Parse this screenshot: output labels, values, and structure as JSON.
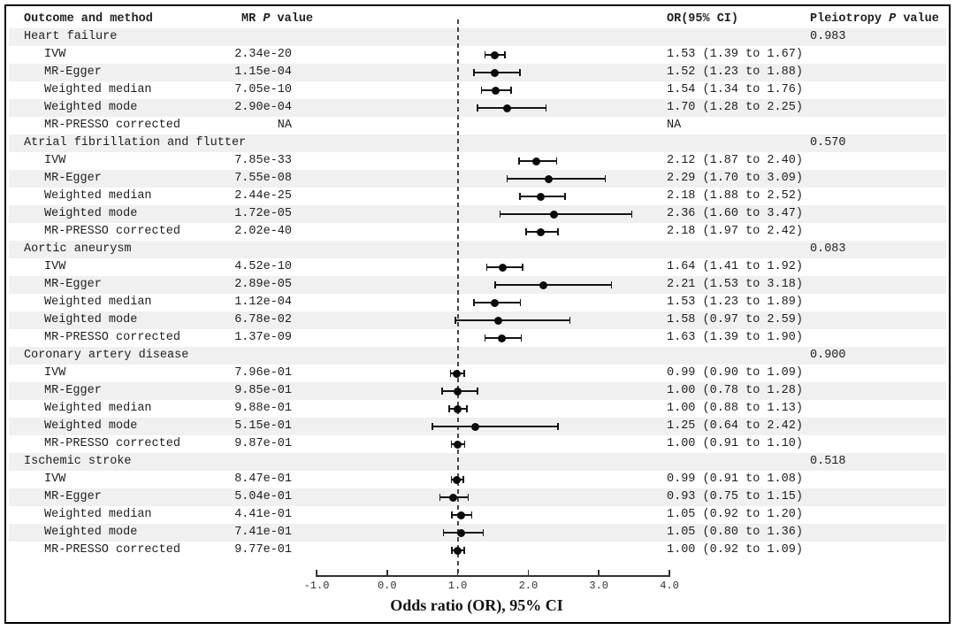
{
  "figure": {
    "headers": {
      "outcome": "Outcome and method",
      "mr_p": {
        "pre": "MR ",
        "italic": "P",
        "post": " value"
      },
      "or": "OR(95% CI)",
      "pleiotropy": {
        "pre": "Pleiotropy ",
        "italic": "P",
        "post": " value"
      }
    },
    "axis_title": "Odds ratio (OR), 95% CI",
    "colors": {
      "stripe": "#f0f0f0",
      "text": "#1e1e1e",
      "marker": "#0a0a0a",
      "axis": "#333333",
      "reference_line": "#454545"
    }
  },
  "chart_data": {
    "type": "scatter",
    "subtype": "forest-plot",
    "xlabel": "Odds ratio (OR), 95% CI",
    "xlim": [
      -1.0,
      4.0
    ],
    "x_ticks": [
      -1.0,
      0.0,
      1.0,
      2.0,
      3.0,
      4.0
    ],
    "x_tick_labels": [
      "-1.0",
      "0.0",
      "1.0",
      "2.0",
      "3.0",
      "4.0"
    ],
    "reference_line_x": 1.0,
    "grid": false,
    "legend": false,
    "sections": [
      {
        "outcome": "Heart failure",
        "pleiotropy_p": "0.983",
        "rows": [
          {
            "method": "IVW",
            "mr_p": "2.34e-20",
            "or": 1.53,
            "ci_low": 1.39,
            "ci_high": 1.67,
            "or_text": "1.53 (1.39 to 1.67)"
          },
          {
            "method": "MR-Egger",
            "mr_p": "1.15e-04",
            "or": 1.52,
            "ci_low": 1.23,
            "ci_high": 1.88,
            "or_text": "1.52 (1.23 to 1.88)"
          },
          {
            "method": "Weighted median",
            "mr_p": "7.05e-10",
            "or": 1.54,
            "ci_low": 1.34,
            "ci_high": 1.76,
            "or_text": "1.54 (1.34 to 1.76)"
          },
          {
            "method": "Weighted mode",
            "mr_p": "2.90e-04",
            "or": 1.7,
            "ci_low": 1.28,
            "ci_high": 2.25,
            "or_text": "1.70 (1.28 to 2.25)"
          },
          {
            "method": "MR-PRESSO corrected",
            "mr_p": "NA",
            "or": null,
            "ci_low": null,
            "ci_high": null,
            "or_text": "NA"
          }
        ]
      },
      {
        "outcome": "Atrial fibrillation and flutter",
        "pleiotropy_p": "0.570",
        "rows": [
          {
            "method": "IVW",
            "mr_p": "7.85e-33",
            "or": 2.12,
            "ci_low": 1.87,
            "ci_high": 2.4,
            "or_text": "2.12 (1.87 to 2.40)"
          },
          {
            "method": "MR-Egger",
            "mr_p": "7.55e-08",
            "or": 2.29,
            "ci_low": 1.7,
            "ci_high": 3.09,
            "or_text": "2.29 (1.70 to 3.09)"
          },
          {
            "method": "Weighted median",
            "mr_p": "2.44e-25",
            "or": 2.18,
            "ci_low": 1.88,
            "ci_high": 2.52,
            "or_text": "2.18 (1.88 to 2.52)"
          },
          {
            "method": "Weighted mode",
            "mr_p": "1.72e-05",
            "or": 2.36,
            "ci_low": 1.6,
            "ci_high": 3.47,
            "or_text": "2.36 (1.60 to 3.47)"
          },
          {
            "method": "MR-PRESSO corrected",
            "mr_p": "2.02e-40",
            "or": 2.18,
            "ci_low": 1.97,
            "ci_high": 2.42,
            "or_text": "2.18 (1.97 to 2.42)"
          }
        ]
      },
      {
        "outcome": "Aortic aneurysm",
        "pleiotropy_p": "0.083",
        "rows": [
          {
            "method": "IVW",
            "mr_p": "4.52e-10",
            "or": 1.64,
            "ci_low": 1.41,
            "ci_high": 1.92,
            "or_text": "1.64 (1.41 to 1.92)"
          },
          {
            "method": "MR-Egger",
            "mr_p": "2.89e-05",
            "or": 2.21,
            "ci_low": 1.53,
            "ci_high": 3.18,
            "or_text": "2.21 (1.53 to 3.18)"
          },
          {
            "method": "Weighted median",
            "mr_p": "1.12e-04",
            "or": 1.53,
            "ci_low": 1.23,
            "ci_high": 1.89,
            "or_text": "1.53 (1.23 to 1.89)"
          },
          {
            "method": "Weighted mode",
            "mr_p": "6.78e-02",
            "or": 1.58,
            "ci_low": 0.97,
            "ci_high": 2.59,
            "or_text": "1.58 (0.97 to 2.59)"
          },
          {
            "method": "MR-PRESSO corrected",
            "mr_p": "1.37e-09",
            "or": 1.63,
            "ci_low": 1.39,
            "ci_high": 1.9,
            "or_text": "1.63 (1.39 to 1.90)"
          }
        ]
      },
      {
        "outcome": "Coronary artery disease",
        "pleiotropy_p": "0.900",
        "rows": [
          {
            "method": "IVW",
            "mr_p": "7.96e-01",
            "or": 0.99,
            "ci_low": 0.9,
            "ci_high": 1.09,
            "or_text": "0.99 (0.90 to 1.09)"
          },
          {
            "method": "MR-Egger",
            "mr_p": "9.85e-01",
            "or": 1.0,
            "ci_low": 0.78,
            "ci_high": 1.28,
            "or_text": "1.00 (0.78 to 1.28)"
          },
          {
            "method": "Weighted median",
            "mr_p": "9.88e-01",
            "or": 1.0,
            "ci_low": 0.88,
            "ci_high": 1.13,
            "or_text": "1.00 (0.88 to 1.13)"
          },
          {
            "method": "Weighted mode",
            "mr_p": "5.15e-01",
            "or": 1.25,
            "ci_low": 0.64,
            "ci_high": 2.42,
            "or_text": "1.25 (0.64 to 2.42)"
          },
          {
            "method": "MR-PRESSO corrected",
            "mr_p": "9.87e-01",
            "or": 1.0,
            "ci_low": 0.91,
            "ci_high": 1.1,
            "or_text": "1.00 (0.91 to 1.10)"
          }
        ]
      },
      {
        "outcome": "Ischemic stroke",
        "pleiotropy_p": "0.518",
        "rows": [
          {
            "method": "IVW",
            "mr_p": "8.47e-01",
            "or": 0.99,
            "ci_low": 0.91,
            "ci_high": 1.08,
            "or_text": "0.99 (0.91 to 1.08)"
          },
          {
            "method": "MR-Egger",
            "mr_p": "5.04e-01",
            "or": 0.93,
            "ci_low": 0.75,
            "ci_high": 1.15,
            "or_text": "0.93 (0.75 to 1.15)"
          },
          {
            "method": "Weighted median",
            "mr_p": "4.41e-01",
            "or": 1.05,
            "ci_low": 0.92,
            "ci_high": 1.2,
            "or_text": "1.05 (0.92 to 1.20)"
          },
          {
            "method": "Weighted mode",
            "mr_p": "7.41e-01",
            "or": 1.05,
            "ci_low": 0.8,
            "ci_high": 1.36,
            "or_text": "1.05 (0.80 to 1.36)"
          },
          {
            "method": "MR-PRESSO corrected",
            "mr_p": "9.77e-01",
            "or": 1.0,
            "ci_low": 0.92,
            "ci_high": 1.09,
            "or_text": "1.00 (0.92 to 1.09)"
          }
        ]
      }
    ]
  }
}
